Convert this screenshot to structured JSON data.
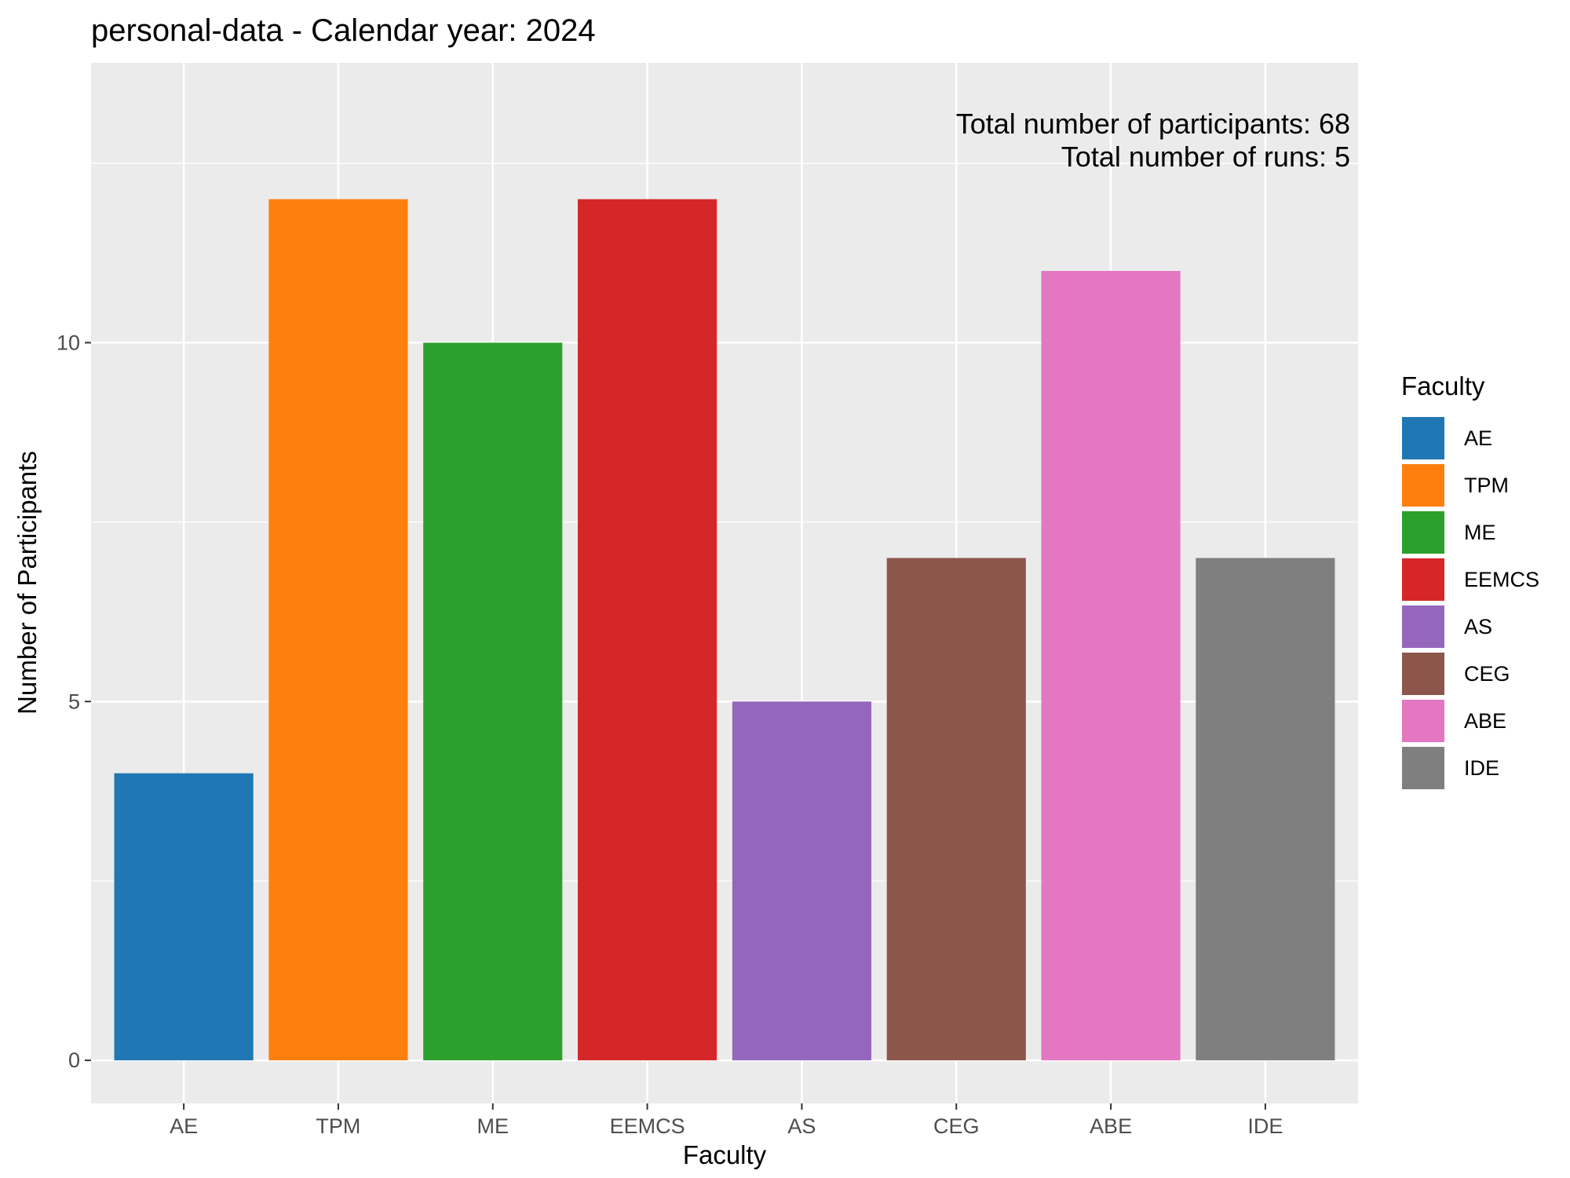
{
  "chart_data": {
    "type": "bar",
    "title": "personal-data - Calendar year: 2024",
    "xlabel": "Faculty",
    "ylabel": "Number of Participants",
    "categories": [
      "AE",
      "TPM",
      "ME",
      "EEMCS",
      "AS",
      "CEG",
      "ABE",
      "IDE"
    ],
    "values": [
      4,
      12,
      10,
      12,
      5,
      7,
      11,
      7
    ],
    "colors": [
      "#1f77b4",
      "#ff7f0e",
      "#2ca02c",
      "#d62728",
      "#9467bd",
      "#8c564b",
      "#e377c2",
      "#7f7f7f"
    ],
    "ylim": [
      -0.6,
      13.9
    ],
    "yticks": [
      0,
      5,
      10
    ],
    "ytick_labels": [
      "0",
      "5",
      "10"
    ],
    "grid": true,
    "legend": {
      "title": "Faculty",
      "placement": "right",
      "entries": [
        "AE",
        "TPM",
        "ME",
        "EEMCS",
        "AS",
        "CEG",
        "ABE",
        "IDE"
      ]
    },
    "annotations": [
      "Total number of participants: 68",
      "Total number of runs: 5"
    ]
  }
}
